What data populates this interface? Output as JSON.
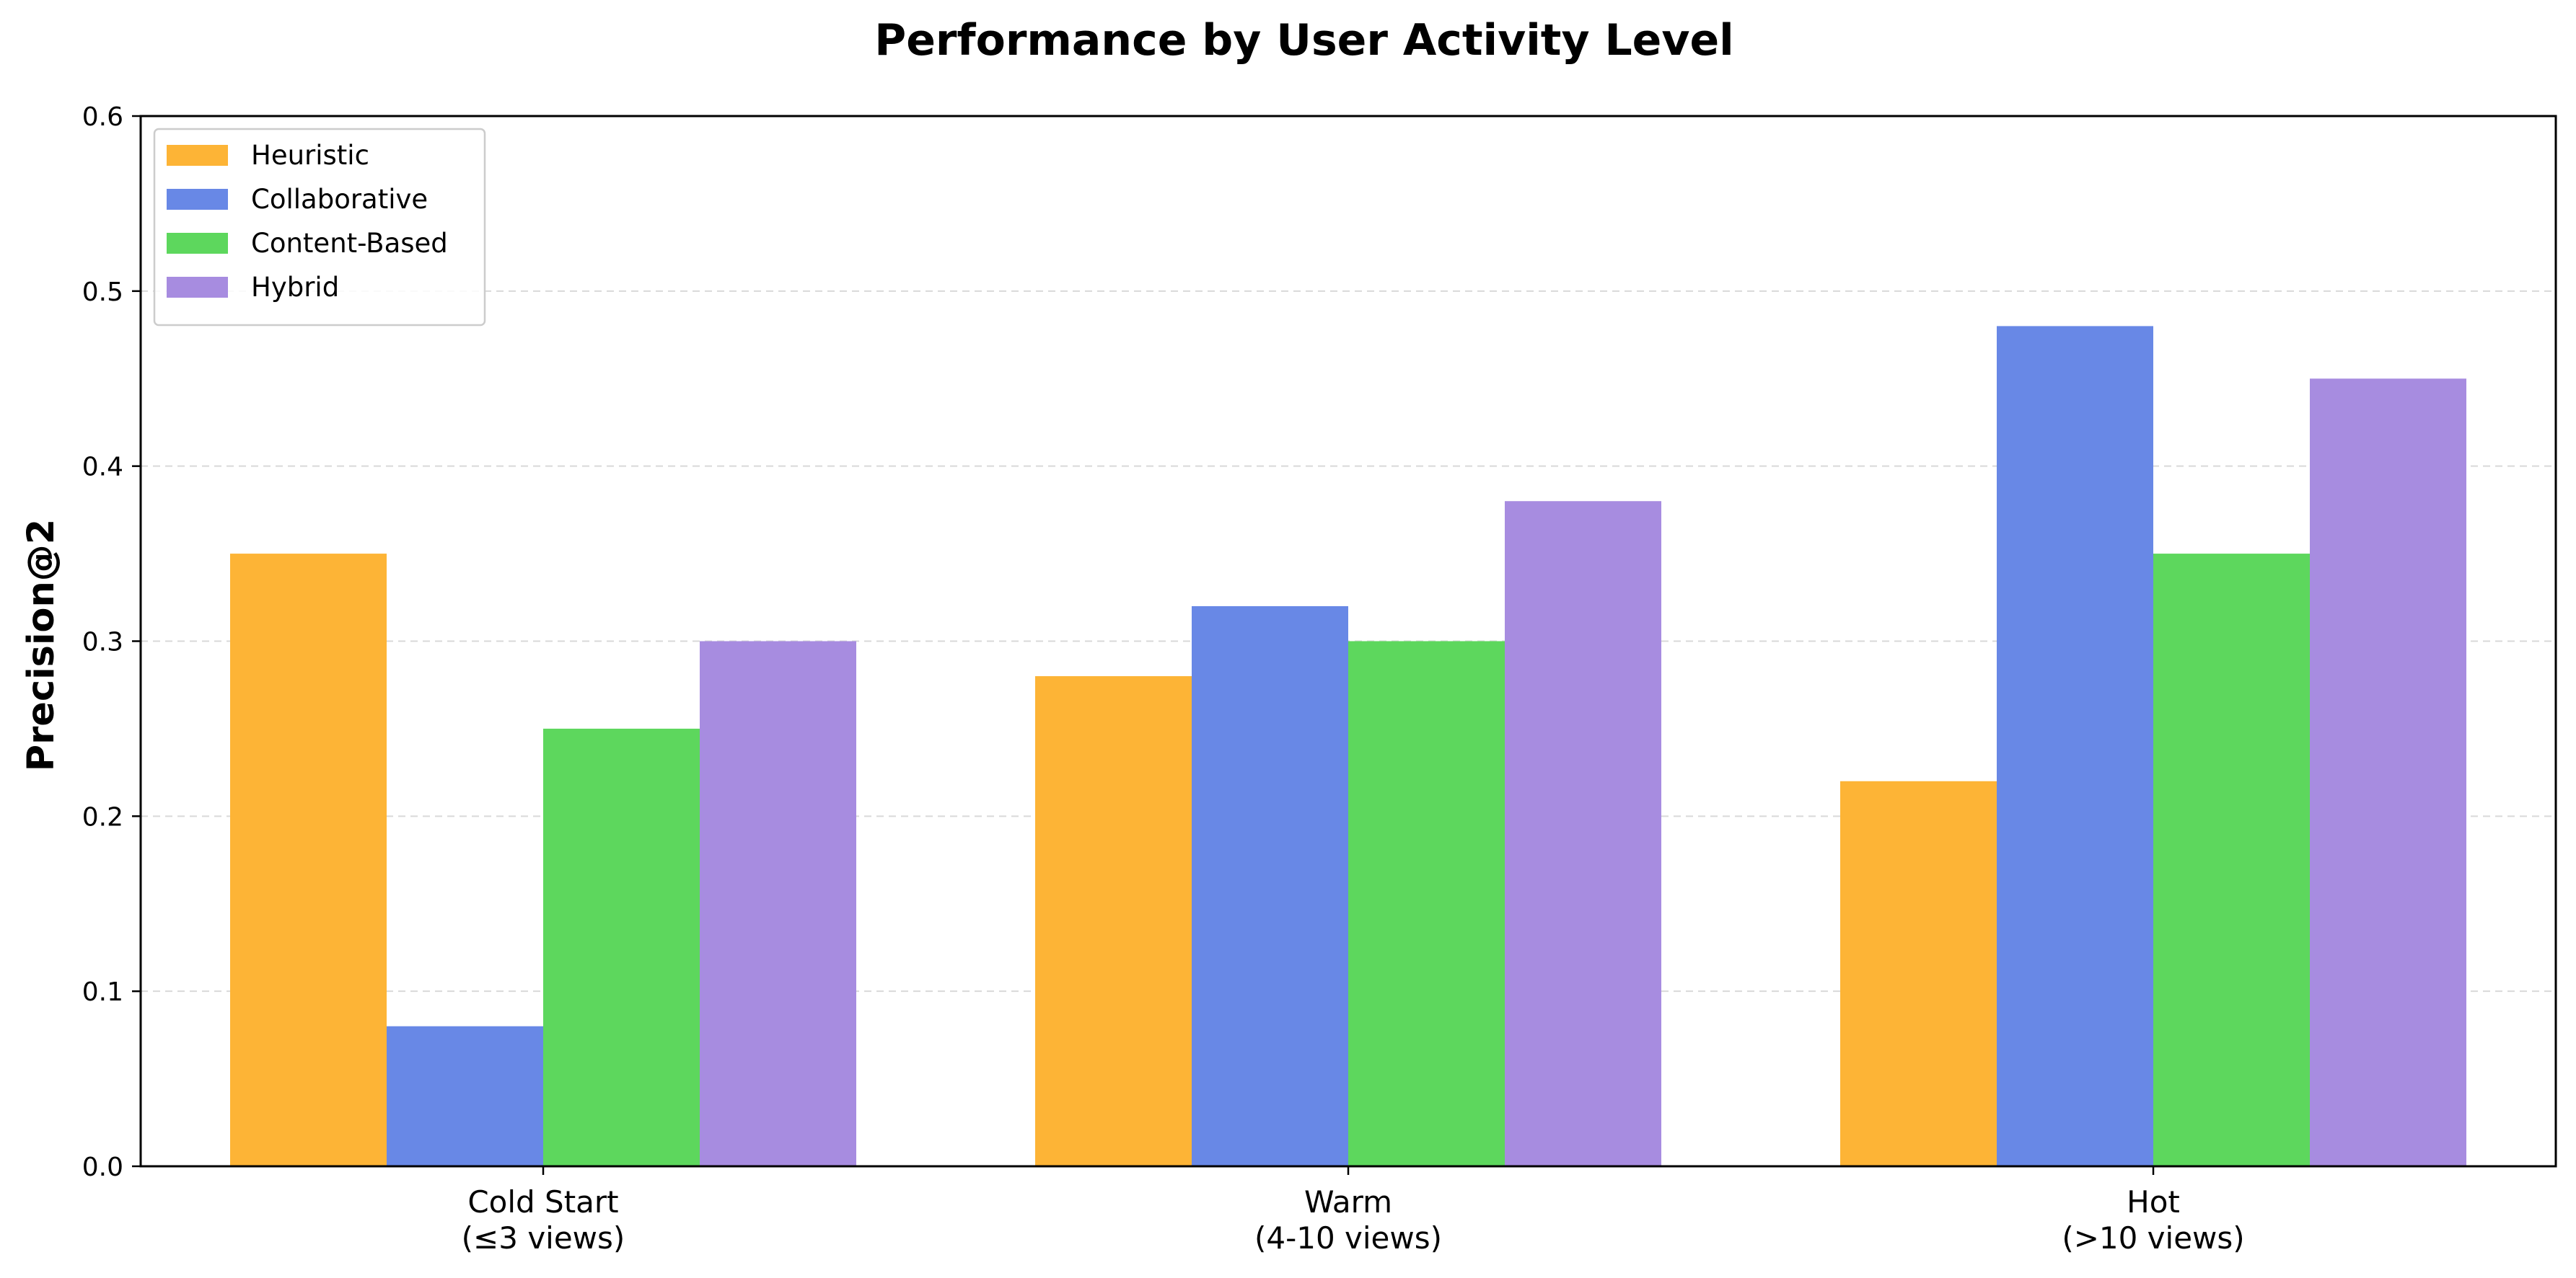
{
  "chart_data": {
    "type": "bar",
    "title": "Performance by User Activity Level",
    "xlabel": "",
    "ylabel": "Precision@2",
    "ylim": [
      0,
      0.6
    ],
    "yticks": [
      "0.0",
      "0.1",
      "0.2",
      "0.3",
      "0.4",
      "0.5",
      "0.6"
    ],
    "grid": "y-dashed",
    "legend_position": "top-left",
    "categories": [
      [
        "Cold Start",
        "(≤3 views)"
      ],
      [
        "Warm",
        "(4-10 views)"
      ],
      [
        "Hot",
        "(>10 views)"
      ]
    ],
    "series": [
      {
        "name": "Heuristic",
        "color": "#FDB436",
        "values": [
          0.35,
          0.28,
          0.22
        ]
      },
      {
        "name": "Collaborative",
        "color": "#6888E6",
        "values": [
          0.08,
          0.32,
          0.48
        ]
      },
      {
        "name": "Content-Based",
        "color": "#5DD75D",
        "values": [
          0.25,
          0.3,
          0.35
        ]
      },
      {
        "name": "Hybrid",
        "color": "#A78CE0",
        "values": [
          0.3,
          0.38,
          0.45
        ]
      }
    ]
  }
}
